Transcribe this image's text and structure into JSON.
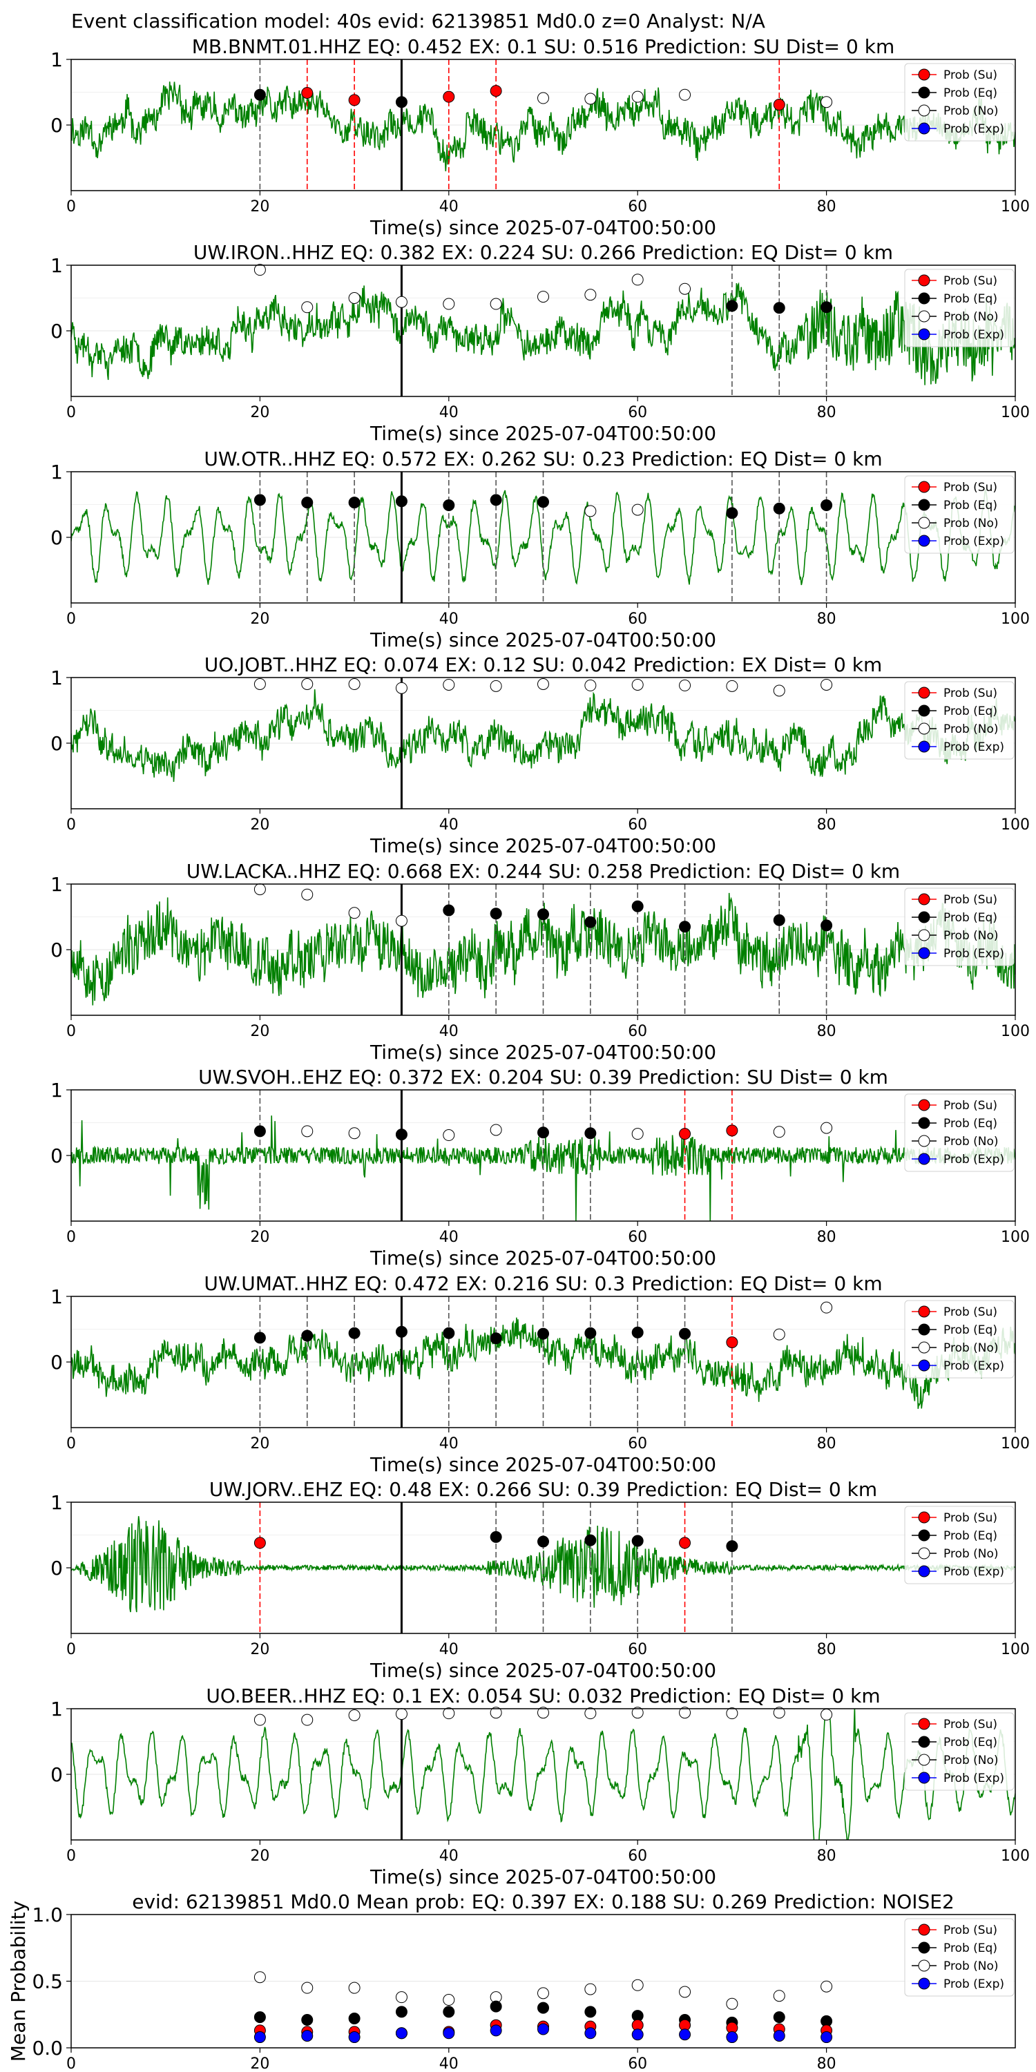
{
  "figure": {
    "suptitle": "Event classification model: 40s evid: 62139851 Md0.0 z=0 Analyst: N/A"
  },
  "legend": {
    "items": [
      {
        "label": "Prob (Su)",
        "color": "#ff0000"
      },
      {
        "label": "Prob (Eq)",
        "color": "#000000"
      },
      {
        "label": "Prob (No)",
        "color": "#ffffff"
      },
      {
        "label": "Prob (Exp)",
        "color": "#0000ff"
      }
    ]
  },
  "colors": {
    "waveform": "#008000",
    "eq_line": "#555555",
    "su_line": "#ff0000",
    "origin_line": "#000000"
  },
  "chart_data": [
    {
      "type": "line",
      "title": "MB.BNMT.01.HHZ   EQ: 0.452  EX: 0.1  SU: 0.516   Prediction: SU    Dist= 0 km",
      "xlabel": "Time(s) since 2025-07-04T00:50:00",
      "xlim": [
        0,
        100
      ],
      "ylim": [
        -1,
        1
      ],
      "xticks": [
        0,
        20,
        40,
        60,
        80,
        100
      ],
      "yticks": [
        0,
        1
      ],
      "origin_time": 35,
      "seed": 11,
      "wave_style": "noise",
      "points": [
        {
          "x": 20,
          "y": 0.46,
          "cls": "eq"
        },
        {
          "x": 25,
          "y": 0.49,
          "cls": "su"
        },
        {
          "x": 30,
          "y": 0.38,
          "cls": "su"
        },
        {
          "x": 35,
          "y": 0.35,
          "cls": "eq"
        },
        {
          "x": 40,
          "y": 0.43,
          "cls": "su"
        },
        {
          "x": 45,
          "y": 0.52,
          "cls": "su"
        },
        {
          "x": 50,
          "y": 0.41,
          "cls": "no"
        },
        {
          "x": 55,
          "y": 0.4,
          "cls": "no"
        },
        {
          "x": 60,
          "y": 0.43,
          "cls": "no"
        },
        {
          "x": 65,
          "y": 0.46,
          "cls": "no"
        },
        {
          "x": 75,
          "y": 0.31,
          "cls": "su"
        },
        {
          "x": 80,
          "y": 0.35,
          "cls": "no"
        }
      ]
    },
    {
      "type": "line",
      "title": "UW.IRON..HHZ   EQ: 0.382  EX: 0.224  SU: 0.266   Prediction: EQ    Dist= 0 km",
      "xlabel": "Time(s) since 2025-07-04T00:50:00",
      "xlim": [
        0,
        100
      ],
      "ylim": [
        -1,
        1
      ],
      "xticks": [
        0,
        20,
        40,
        60,
        80,
        100
      ],
      "yticks": [
        0,
        1
      ],
      "origin_time": 35,
      "seed": 23,
      "wave_style": "noise_end",
      "points": [
        {
          "x": 20,
          "y": 0.93,
          "cls": "no"
        },
        {
          "x": 25,
          "y": 0.36,
          "cls": "no"
        },
        {
          "x": 30,
          "y": 0.5,
          "cls": "no"
        },
        {
          "x": 35,
          "y": 0.44,
          "cls": "no"
        },
        {
          "x": 40,
          "y": 0.41,
          "cls": "no"
        },
        {
          "x": 45,
          "y": 0.41,
          "cls": "no"
        },
        {
          "x": 50,
          "y": 0.52,
          "cls": "no"
        },
        {
          "x": 55,
          "y": 0.55,
          "cls": "no"
        },
        {
          "x": 60,
          "y": 0.78,
          "cls": "no"
        },
        {
          "x": 65,
          "y": 0.64,
          "cls": "no"
        },
        {
          "x": 70,
          "y": 0.38,
          "cls": "eq"
        },
        {
          "x": 75,
          "y": 0.35,
          "cls": "eq"
        },
        {
          "x": 80,
          "y": 0.36,
          "cls": "eq"
        }
      ]
    },
    {
      "type": "line",
      "title": "UW.OTR..HHZ   EQ: 0.572  EX: 0.262  SU: 0.23   Prediction: EQ    Dist= 0 km",
      "xlabel": "Time(s) since 2025-07-04T00:50:00",
      "xlim": [
        0,
        100
      ],
      "ylim": [
        -1,
        1
      ],
      "xticks": [
        0,
        20,
        40,
        60,
        80,
        100
      ],
      "yticks": [
        0,
        1
      ],
      "origin_time": 35,
      "seed": 37,
      "wave_style": "smooth",
      "points": [
        {
          "x": 20,
          "y": 0.57,
          "cls": "eq"
        },
        {
          "x": 25,
          "y": 0.53,
          "cls": "eq"
        },
        {
          "x": 30,
          "y": 0.53,
          "cls": "eq"
        },
        {
          "x": 35,
          "y": 0.55,
          "cls": "eq"
        },
        {
          "x": 40,
          "y": 0.49,
          "cls": "eq"
        },
        {
          "x": 45,
          "y": 0.57,
          "cls": "eq"
        },
        {
          "x": 50,
          "y": 0.54,
          "cls": "eq"
        },
        {
          "x": 55,
          "y": 0.4,
          "cls": "no"
        },
        {
          "x": 60,
          "y": 0.42,
          "cls": "no"
        },
        {
          "x": 70,
          "y": 0.37,
          "cls": "eq"
        },
        {
          "x": 75,
          "y": 0.44,
          "cls": "eq"
        },
        {
          "x": 80,
          "y": 0.49,
          "cls": "eq"
        }
      ]
    },
    {
      "type": "line",
      "title": "UO.JOBT..HHZ   EQ: 0.074  EX: 0.12  SU: 0.042   Prediction: EX    Dist= 0 km",
      "xlabel": "Time(s) since 2025-07-04T00:50:00",
      "xlim": [
        0,
        100
      ],
      "ylim": [
        -1,
        1
      ],
      "xticks": [
        0,
        20,
        40,
        60,
        80,
        100
      ],
      "yticks": [
        0,
        1
      ],
      "origin_time": 35,
      "seed": 41,
      "wave_style": "noise",
      "points": [
        {
          "x": 20,
          "y": 0.9,
          "cls": "no"
        },
        {
          "x": 25,
          "y": 0.9,
          "cls": "no"
        },
        {
          "x": 30,
          "y": 0.9,
          "cls": "no"
        },
        {
          "x": 35,
          "y": 0.84,
          "cls": "no"
        },
        {
          "x": 40,
          "y": 0.89,
          "cls": "no"
        },
        {
          "x": 45,
          "y": 0.87,
          "cls": "no"
        },
        {
          "x": 50,
          "y": 0.9,
          "cls": "no"
        },
        {
          "x": 55,
          "y": 0.88,
          "cls": "no"
        },
        {
          "x": 60,
          "y": 0.89,
          "cls": "no"
        },
        {
          "x": 65,
          "y": 0.88,
          "cls": "no"
        },
        {
          "x": 70,
          "y": 0.87,
          "cls": "no"
        },
        {
          "x": 75,
          "y": 0.8,
          "cls": "no"
        },
        {
          "x": 80,
          "y": 0.89,
          "cls": "no"
        }
      ]
    },
    {
      "type": "line",
      "title": "UW.LACKA..HHZ   EQ: 0.668  EX: 0.244  SU: 0.258   Prediction: EQ    Dist= 0 km",
      "xlabel": "Time(s) since 2025-07-04T00:50:00",
      "xlim": [
        0,
        100
      ],
      "ylim": [
        -1,
        1
      ],
      "xticks": [
        0,
        20,
        40,
        60,
        80,
        100
      ],
      "yticks": [
        0,
        1
      ],
      "origin_time": 35,
      "seed": 53,
      "wave_style": "noise_big",
      "points": [
        {
          "x": 20,
          "y": 0.92,
          "cls": "no"
        },
        {
          "x": 25,
          "y": 0.84,
          "cls": "no"
        },
        {
          "x": 30,
          "y": 0.56,
          "cls": "no"
        },
        {
          "x": 35,
          "y": 0.44,
          "cls": "no"
        },
        {
          "x": 40,
          "y": 0.6,
          "cls": "eq"
        },
        {
          "x": 45,
          "y": 0.55,
          "cls": "eq"
        },
        {
          "x": 50,
          "y": 0.54,
          "cls": "eq"
        },
        {
          "x": 55,
          "y": 0.42,
          "cls": "eq"
        },
        {
          "x": 60,
          "y": 0.66,
          "cls": "eq"
        },
        {
          "x": 65,
          "y": 0.35,
          "cls": "eq"
        },
        {
          "x": 75,
          "y": 0.45,
          "cls": "eq"
        },
        {
          "x": 80,
          "y": 0.37,
          "cls": "eq"
        }
      ]
    },
    {
      "type": "line",
      "title": "UW.SVOH..EHZ   EQ: 0.372  EX: 0.204  SU: 0.39   Prediction: SU    Dist= 0 km",
      "xlabel": "Time(s) since 2025-07-04T00:50:00",
      "xlim": [
        0,
        100
      ],
      "ylim": [
        -1,
        1
      ],
      "xticks": [
        0,
        20,
        40,
        60,
        80,
        100
      ],
      "yticks": [
        0,
        1
      ],
      "origin_time": 35,
      "seed": 67,
      "wave_style": "spiky",
      "points": [
        {
          "x": 20,
          "y": 0.37,
          "cls": "eq"
        },
        {
          "x": 25,
          "y": 0.37,
          "cls": "no"
        },
        {
          "x": 30,
          "y": 0.34,
          "cls": "no"
        },
        {
          "x": 35,
          "y": 0.32,
          "cls": "eq"
        },
        {
          "x": 40,
          "y": 0.31,
          "cls": "no"
        },
        {
          "x": 45,
          "y": 0.39,
          "cls": "no"
        },
        {
          "x": 50,
          "y": 0.35,
          "cls": "eq"
        },
        {
          "x": 55,
          "y": 0.34,
          "cls": "eq"
        },
        {
          "x": 60,
          "y": 0.33,
          "cls": "no"
        },
        {
          "x": 65,
          "y": 0.33,
          "cls": "su"
        },
        {
          "x": 70,
          "y": 0.38,
          "cls": "su"
        },
        {
          "x": 75,
          "y": 0.36,
          "cls": "no"
        },
        {
          "x": 80,
          "y": 0.42,
          "cls": "no"
        }
      ]
    },
    {
      "type": "line",
      "title": "UW.UMAT..HHZ   EQ: 0.472  EX: 0.216  SU: 0.3   Prediction: EQ    Dist= 0 km",
      "xlabel": "Time(s) since 2025-07-04T00:50:00",
      "xlim": [
        0,
        100
      ],
      "ylim": [
        -1,
        1
      ],
      "xticks": [
        0,
        20,
        40,
        60,
        80,
        100
      ],
      "yticks": [
        0,
        1
      ],
      "origin_time": 35,
      "seed": 79,
      "wave_style": "noise",
      "points": [
        {
          "x": 20,
          "y": 0.37,
          "cls": "eq"
        },
        {
          "x": 25,
          "y": 0.4,
          "cls": "eq"
        },
        {
          "x": 30,
          "y": 0.44,
          "cls": "eq"
        },
        {
          "x": 35,
          "y": 0.46,
          "cls": "eq"
        },
        {
          "x": 40,
          "y": 0.44,
          "cls": "eq"
        },
        {
          "x": 45,
          "y": 0.36,
          "cls": "eq"
        },
        {
          "x": 50,
          "y": 0.43,
          "cls": "eq"
        },
        {
          "x": 55,
          "y": 0.44,
          "cls": "eq"
        },
        {
          "x": 60,
          "y": 0.45,
          "cls": "eq"
        },
        {
          "x": 65,
          "y": 0.43,
          "cls": "eq"
        },
        {
          "x": 70,
          "y": 0.3,
          "cls": "su"
        },
        {
          "x": 75,
          "y": 0.42,
          "cls": "no"
        },
        {
          "x": 80,
          "y": 0.83,
          "cls": "no"
        }
      ]
    },
    {
      "type": "line",
      "title": "UW.JORV..EHZ   EQ: 0.48  EX: 0.266  SU: 0.39   Prediction: EQ    Dist= 0 km",
      "xlabel": "Time(s) since 2025-07-04T00:50:00",
      "xlim": [
        0,
        100
      ],
      "ylim": [
        -1,
        1
      ],
      "xticks": [
        0,
        20,
        40,
        60,
        80,
        100
      ],
      "yticks": [
        0,
        1
      ],
      "origin_time": 35,
      "seed": 97,
      "wave_style": "burst",
      "points": [
        {
          "x": 20,
          "y": 0.38,
          "cls": "su"
        },
        {
          "x": 45,
          "y": 0.47,
          "cls": "eq"
        },
        {
          "x": 50,
          "y": 0.4,
          "cls": "eq"
        },
        {
          "x": 55,
          "y": 0.42,
          "cls": "eq"
        },
        {
          "x": 60,
          "y": 0.41,
          "cls": "eq"
        },
        {
          "x": 65,
          "y": 0.38,
          "cls": "su"
        },
        {
          "x": 70,
          "y": 0.33,
          "cls": "eq"
        }
      ]
    },
    {
      "type": "line",
      "title": "UO.BEER..HHZ   EQ: 0.1  EX: 0.054  SU: 0.032   Prediction: EQ    Dist= 0 km",
      "xlabel": "Time(s) since 2025-07-04T00:50:00",
      "xlim": [
        0,
        100
      ],
      "ylim": [
        -1,
        1
      ],
      "xticks": [
        0,
        20,
        40,
        60,
        80,
        100
      ],
      "yticks": [
        0,
        1
      ],
      "origin_time": 35,
      "seed": 103,
      "wave_style": "smooth",
      "points": [
        {
          "x": 20,
          "y": 0.83,
          "cls": "no"
        },
        {
          "x": 25,
          "y": 0.83,
          "cls": "no"
        },
        {
          "x": 30,
          "y": 0.9,
          "cls": "no"
        },
        {
          "x": 35,
          "y": 0.92,
          "cls": "no"
        },
        {
          "x": 40,
          "y": 0.93,
          "cls": "no"
        },
        {
          "x": 45,
          "y": 0.94,
          "cls": "no"
        },
        {
          "x": 50,
          "y": 0.94,
          "cls": "no"
        },
        {
          "x": 55,
          "y": 0.93,
          "cls": "no"
        },
        {
          "x": 60,
          "y": 0.94,
          "cls": "no"
        },
        {
          "x": 65,
          "y": 0.94,
          "cls": "no"
        },
        {
          "x": 70,
          "y": 0.93,
          "cls": "no"
        },
        {
          "x": 75,
          "y": 0.94,
          "cls": "no"
        },
        {
          "x": 80,
          "y": 0.91,
          "cls": "no"
        }
      ]
    },
    {
      "type": "scatter",
      "title": "evid: 62139851  Md0.0   Mean prob:    EQ: 0.397  EX: 0.188  SU: 0.269   Prediction: NOISE2",
      "ylabel": "Mean Probability",
      "xlim": [
        0,
        100
      ],
      "ylim": [
        0,
        1
      ],
      "xticks": [
        0,
        20,
        40,
        60,
        80
      ],
      "yticks": [
        0.0,
        0.5,
        1.0
      ],
      "x": [
        20,
        25,
        30,
        35,
        40,
        45,
        50,
        55,
        60,
        65,
        70,
        75,
        80
      ],
      "series": [
        {
          "cls": "no",
          "values": [
            0.53,
            0.45,
            0.45,
            0.38,
            0.36,
            0.38,
            0.41,
            0.44,
            0.47,
            0.42,
            0.33,
            0.39,
            0.46
          ]
        },
        {
          "cls": "eq",
          "values": [
            0.23,
            0.21,
            0.22,
            0.27,
            0.27,
            0.31,
            0.3,
            0.27,
            0.24,
            0.21,
            0.19,
            0.23,
            0.2
          ]
        },
        {
          "cls": "su",
          "values": [
            0.13,
            0.12,
            0.12,
            0.11,
            0.12,
            0.17,
            0.16,
            0.16,
            0.17,
            0.17,
            0.15,
            0.14,
            0.13
          ]
        },
        {
          "cls": "exp",
          "values": [
            0.08,
            0.09,
            0.08,
            0.11,
            0.11,
            0.13,
            0.14,
            0.11,
            0.1,
            0.1,
            0.08,
            0.09,
            0.08
          ]
        }
      ]
    }
  ]
}
